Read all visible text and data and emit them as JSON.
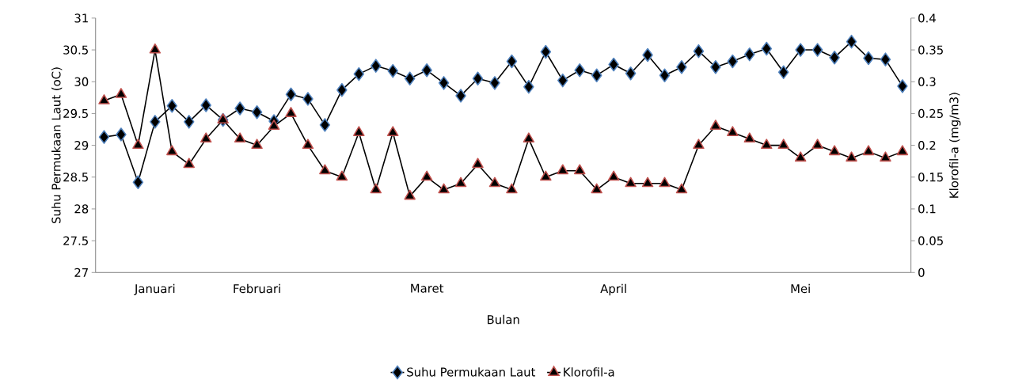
{
  "chart_data": {
    "type": "line",
    "xlabel": "Bulan",
    "ylabel": "Suhu Permukaan Laut (oC)",
    "y2label": "Klorofil-a (mg/m3)",
    "categories": [
      null,
      null,
      null,
      "Januari",
      null,
      null,
      null,
      null,
      null,
      "Februari",
      null,
      null,
      null,
      null,
      null,
      null,
      null,
      null,
      null,
      "Maret",
      null,
      null,
      null,
      null,
      null,
      null,
      null,
      null,
      null,
      null,
      "April",
      null,
      null,
      null,
      null,
      null,
      null,
      null,
      null,
      null,
      null,
      "Mei",
      null,
      null,
      null,
      null,
      null,
      null
    ],
    "series": [
      {
        "name": "Suhu Permukaan Laut",
        "color": "#4f81bd",
        "marker": "diamond",
        "values": [
          29.13,
          29.17,
          28.42,
          29.37,
          29.62,
          29.37,
          29.63,
          29.4,
          29.58,
          29.52,
          29.38,
          29.8,
          29.73,
          29.32,
          29.87,
          30.12,
          30.25,
          30.17,
          30.05,
          30.18,
          29.98,
          29.78,
          30.05,
          29.98,
          30.32,
          29.92,
          30.47,
          30.02,
          30.18,
          30.1,
          30.27,
          30.13,
          30.42,
          30.1,
          30.23,
          30.48,
          30.23,
          30.32,
          30.43,
          30.52,
          30.15,
          30.5,
          30.5,
          30.38,
          30.63,
          30.37,
          30.35,
          29.93
        ]
      },
      {
        "name": "Klorofil-a",
        "color": "#c0504d",
        "marker": "triangle",
        "axis": "y2",
        "values": [
          0.27,
          0.28,
          0.2,
          0.35,
          0.19,
          0.17,
          0.21,
          0.24,
          0.21,
          0.2,
          0.23,
          0.25,
          0.2,
          0.16,
          0.15,
          0.22,
          0.13,
          0.22,
          0.12,
          0.15,
          0.13,
          0.14,
          0.17,
          0.14,
          0.13,
          0.21,
          0.15,
          0.16,
          0.16,
          0.13,
          0.15,
          0.14,
          0.14,
          0.14,
          0.13,
          0.2,
          0.23,
          0.22,
          0.21,
          0.2,
          0.2,
          0.18,
          0.2,
          0.19,
          0.18,
          0.19,
          0.18,
          0.19
        ]
      }
    ],
    "ylim": [
      27,
      31
    ],
    "yticks": [
      27,
      27.5,
      28,
      28.5,
      29,
      29.5,
      30,
      30.5,
      31
    ],
    "y2lim": [
      0,
      0.4
    ],
    "y2ticks": [
      0,
      0.05,
      0.1,
      0.15,
      0.2,
      0.25,
      0.3,
      0.35,
      0.4
    ],
    "line_style": "solid",
    "legend": "bottom"
  }
}
